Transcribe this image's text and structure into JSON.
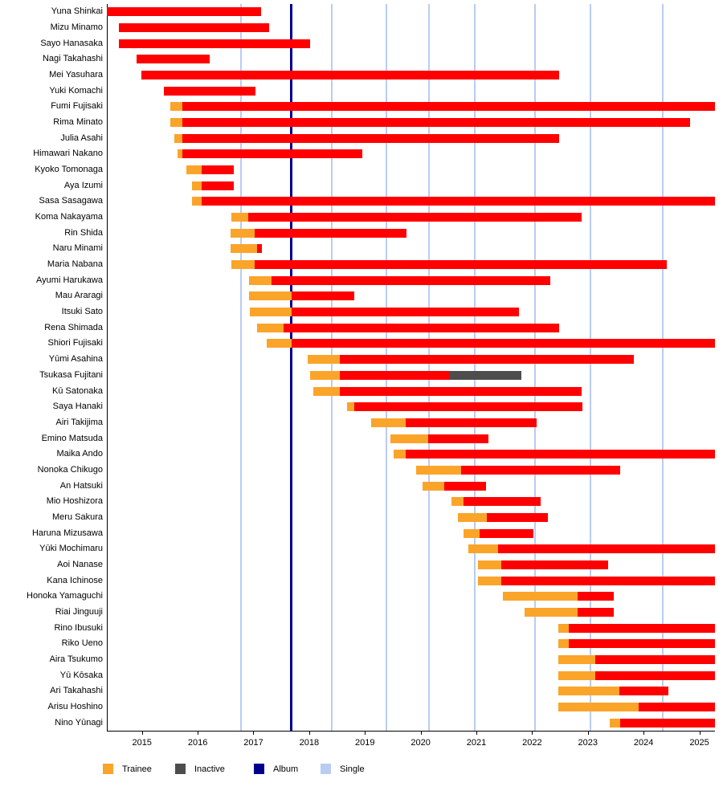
{
  "chart_data": {
    "type": "timeline-gantt",
    "title": "",
    "x_axis": {
      "min": 2014.37,
      "max": 2025.28,
      "ticks": [
        2015,
        2016,
        2017,
        2018,
        2019,
        2020,
        2021,
        2022,
        2023,
        2024,
        2025
      ]
    },
    "event_lines": {
      "album": [
        2017.68
      ],
      "singles": [
        2016.77,
        2018.41,
        2019.39,
        2020.15,
        2020.97,
        2022.05,
        2023.04,
        2024.35
      ]
    },
    "members": [
      {
        "name": "Yuna Shinkai",
        "segments": [
          {
            "status": "active",
            "start": 2014.37,
            "end": 2017.13
          }
        ]
      },
      {
        "name": "Mizu Minamo",
        "segments": [
          {
            "status": "active",
            "start": 2014.59,
            "end": 2017.28
          }
        ]
      },
      {
        "name": "Sayo Hanasaka",
        "segments": [
          {
            "status": "active",
            "start": 2014.59,
            "end": 2018.01
          }
        ]
      },
      {
        "name": "Nagi Takahashi",
        "segments": [
          {
            "status": "active",
            "start": 2014.91,
            "end": 2016.22
          }
        ]
      },
      {
        "name": "Mei Yasuhara",
        "segments": [
          {
            "status": "active",
            "start": 2014.99,
            "end": 2022.49
          }
        ]
      },
      {
        "name": "Yuki Komachi",
        "segments": [
          {
            "status": "active",
            "start": 2015.39,
            "end": 2017.04
          }
        ]
      },
      {
        "name": "Fumi Fujisaki",
        "segments": [
          {
            "status": "trainee",
            "start": 2015.51,
            "end": 2015.72
          },
          {
            "status": "active",
            "start": 2015.72,
            "end": 2025.28
          }
        ]
      },
      {
        "name": "Rima Minato",
        "segments": [
          {
            "status": "trainee",
            "start": 2015.51,
            "end": 2015.72
          },
          {
            "status": "active",
            "start": 2015.72,
            "end": 2024.83
          }
        ]
      },
      {
        "name": "Julia Asahi",
        "segments": [
          {
            "status": "trainee",
            "start": 2015.58,
            "end": 2015.72
          },
          {
            "status": "active",
            "start": 2015.72,
            "end": 2022.49
          }
        ]
      },
      {
        "name": "Himawari Nakano",
        "segments": [
          {
            "status": "trainee",
            "start": 2015.64,
            "end": 2015.72
          },
          {
            "status": "active",
            "start": 2015.72,
            "end": 2018.96
          }
        ]
      },
      {
        "name": "Kyoko Tomonaga",
        "segments": [
          {
            "status": "trainee",
            "start": 2015.8,
            "end": 2016.07
          },
          {
            "status": "active",
            "start": 2016.07,
            "end": 2016.65
          }
        ]
      },
      {
        "name": "Aya Izumi",
        "segments": [
          {
            "status": "trainee",
            "start": 2015.9,
            "end": 2016.07
          },
          {
            "status": "active",
            "start": 2016.07,
            "end": 2016.65
          }
        ]
      },
      {
        "name": "Sasa Sasagawa",
        "segments": [
          {
            "status": "trainee",
            "start": 2015.9,
            "end": 2016.07
          },
          {
            "status": "active",
            "start": 2016.07,
            "end": 2025.28
          }
        ]
      },
      {
        "name": "Koma Nakayama",
        "segments": [
          {
            "status": "trainee",
            "start": 2016.61,
            "end": 2016.9
          },
          {
            "status": "active",
            "start": 2016.9,
            "end": 2022.89
          }
        ]
      },
      {
        "name": "Rin Shida",
        "segments": [
          {
            "status": "trainee",
            "start": 2016.59,
            "end": 2017.02
          },
          {
            "status": "active",
            "start": 2017.02,
            "end": 2019.75
          }
        ]
      },
      {
        "name": "Naru Minami",
        "segments": [
          {
            "status": "trainee",
            "start": 2016.59,
            "end": 2017.06
          },
          {
            "status": "active",
            "start": 2017.06,
            "end": 2017.15
          }
        ]
      },
      {
        "name": "Maria Nabana",
        "segments": [
          {
            "status": "trainee",
            "start": 2016.61,
            "end": 2017.02
          },
          {
            "status": "active",
            "start": 2017.02,
            "end": 2024.42
          }
        ]
      },
      {
        "name": "Ayumi Harukawa",
        "segments": [
          {
            "status": "trainee",
            "start": 2016.92,
            "end": 2017.32
          },
          {
            "status": "active",
            "start": 2017.32,
            "end": 2022.32
          }
        ]
      },
      {
        "name": "Mau Araragi",
        "segments": [
          {
            "status": "trainee",
            "start": 2016.92,
            "end": 2017.68
          },
          {
            "status": "active",
            "start": 2017.68,
            "end": 2018.81
          }
        ]
      },
      {
        "name": "Itsuki Sato",
        "segments": [
          {
            "status": "trainee",
            "start": 2016.93,
            "end": 2017.68
          },
          {
            "status": "active",
            "start": 2017.68,
            "end": 2021.76
          }
        ]
      },
      {
        "name": "Rena Shimada",
        "segments": [
          {
            "status": "trainee",
            "start": 2017.06,
            "end": 2017.54
          },
          {
            "status": "active",
            "start": 2017.54,
            "end": 2022.49
          }
        ]
      },
      {
        "name": "Shiori Fujisaki",
        "segments": [
          {
            "status": "trainee",
            "start": 2017.24,
            "end": 2017.68
          },
          {
            "status": "active",
            "start": 2017.68,
            "end": 2025.28
          }
        ]
      },
      {
        "name": "Yūmi Asahina",
        "segments": [
          {
            "status": "trainee",
            "start": 2017.98,
            "end": 2018.55
          },
          {
            "status": "active",
            "start": 2018.55,
            "end": 2023.83
          }
        ]
      },
      {
        "name": "Tsukasa Fujitani",
        "segments": [
          {
            "status": "trainee",
            "start": 2018.01,
            "end": 2018.55
          },
          {
            "status": "active",
            "start": 2018.55,
            "end": 2020.52
          },
          {
            "status": "inactive",
            "start": 2020.52,
            "end": 2021.81
          }
        ]
      },
      {
        "name": "Kū Satonaka",
        "segments": [
          {
            "status": "trainee",
            "start": 2018.08,
            "end": 2018.55
          },
          {
            "status": "active",
            "start": 2018.55,
            "end": 2022.89
          }
        ]
      },
      {
        "name": "Saya Hanaki",
        "segments": [
          {
            "status": "trainee",
            "start": 2018.68,
            "end": 2018.81
          },
          {
            "status": "active",
            "start": 2018.81,
            "end": 2022.9
          }
        ]
      },
      {
        "name": "Airi Takijima",
        "segments": [
          {
            "status": "trainee",
            "start": 2019.11,
            "end": 2019.73
          },
          {
            "status": "active",
            "start": 2019.73,
            "end": 2022.08
          }
        ]
      },
      {
        "name": "Emino Matsuda",
        "segments": [
          {
            "status": "trainee",
            "start": 2019.46,
            "end": 2020.13
          },
          {
            "status": "active",
            "start": 2020.13,
            "end": 2021.21
          }
        ]
      },
      {
        "name": "Maika Ando",
        "segments": [
          {
            "status": "trainee",
            "start": 2019.51,
            "end": 2019.73
          },
          {
            "status": "active",
            "start": 2019.73,
            "end": 2025.28
          }
        ]
      },
      {
        "name": "Nonoka Chikugo",
        "segments": [
          {
            "status": "trainee",
            "start": 2019.92,
            "end": 2020.73
          },
          {
            "status": "active",
            "start": 2020.73,
            "end": 2023.58
          }
        ]
      },
      {
        "name": "An Hatsuki",
        "segments": [
          {
            "status": "trainee",
            "start": 2020.04,
            "end": 2020.42
          },
          {
            "status": "active",
            "start": 2020.42,
            "end": 2021.17
          }
        ]
      },
      {
        "name": "Mio Hoshizora",
        "segments": [
          {
            "status": "trainee",
            "start": 2020.55,
            "end": 2020.77
          },
          {
            "status": "active",
            "start": 2020.77,
            "end": 2022.15
          }
        ]
      },
      {
        "name": "Meru Sakura",
        "segments": [
          {
            "status": "trainee",
            "start": 2020.67,
            "end": 2021.18
          },
          {
            "status": "active",
            "start": 2021.18,
            "end": 2022.28
          }
        ]
      },
      {
        "name": "Haruna Mizusawa",
        "segments": [
          {
            "status": "trainee",
            "start": 2020.77,
            "end": 2021.06
          },
          {
            "status": "active",
            "start": 2021.06,
            "end": 2022.03
          }
        ]
      },
      {
        "name": "Yūki Mochimaru",
        "segments": [
          {
            "status": "trainee",
            "start": 2020.85,
            "end": 2021.39
          },
          {
            "status": "active",
            "start": 2021.39,
            "end": 2025.28
          }
        ]
      },
      {
        "name": "Aoi Nanase",
        "segments": [
          {
            "status": "trainee",
            "start": 2021.03,
            "end": 2021.45
          },
          {
            "status": "active",
            "start": 2021.45,
            "end": 2023.36
          }
        ]
      },
      {
        "name": "Kana Ichinose",
        "segments": [
          {
            "status": "trainee",
            "start": 2021.03,
            "end": 2021.45
          },
          {
            "status": "active",
            "start": 2021.45,
            "end": 2025.28
          }
        ]
      },
      {
        "name": "Honoka Yamaguchi",
        "segments": [
          {
            "status": "trainee",
            "start": 2021.47,
            "end": 2022.82
          },
          {
            "status": "active",
            "start": 2022.82,
            "end": 2023.47
          }
        ]
      },
      {
        "name": "Riai Jinguuji",
        "segments": [
          {
            "status": "trainee",
            "start": 2021.87,
            "end": 2022.82
          },
          {
            "status": "active",
            "start": 2022.82,
            "end": 2023.47
          }
        ]
      },
      {
        "name": "Rino Ibusuki",
        "segments": [
          {
            "status": "trainee",
            "start": 2022.47,
            "end": 2022.66
          },
          {
            "status": "active",
            "start": 2022.66,
            "end": 2025.28
          }
        ]
      },
      {
        "name": "Riko Ueno",
        "segments": [
          {
            "status": "trainee",
            "start": 2022.47,
            "end": 2022.66
          },
          {
            "status": "active",
            "start": 2022.66,
            "end": 2025.28
          }
        ]
      },
      {
        "name": "Aira Tsukumo",
        "segments": [
          {
            "status": "trainee",
            "start": 2022.47,
            "end": 2023.13
          },
          {
            "status": "active",
            "start": 2023.13,
            "end": 2025.28
          }
        ]
      },
      {
        "name": "Yū Kōsaka",
        "segments": [
          {
            "status": "trainee",
            "start": 2022.47,
            "end": 2023.13
          },
          {
            "status": "active",
            "start": 2023.13,
            "end": 2025.28
          }
        ]
      },
      {
        "name": "Ari Takahashi",
        "segments": [
          {
            "status": "trainee",
            "start": 2022.47,
            "end": 2023.56
          },
          {
            "status": "active",
            "start": 2023.56,
            "end": 2024.45
          }
        ]
      },
      {
        "name": "Arisu Hoshino",
        "segments": [
          {
            "status": "trainee",
            "start": 2022.47,
            "end": 2023.91
          },
          {
            "status": "active",
            "start": 2023.91,
            "end": 2025.28
          }
        ]
      },
      {
        "name": "Nino Yūnagi",
        "segments": [
          {
            "status": "trainee",
            "start": 2023.39,
            "end": 2023.58
          },
          {
            "status": "active",
            "start": 2023.58,
            "end": 2025.28
          }
        ]
      }
    ]
  },
  "legend": {
    "items": [
      {
        "label": "Trainee",
        "color": "#FBA42A"
      },
      {
        "label": "Inactive",
        "color": "#4D4D4D"
      },
      {
        "label": "Album",
        "color": "#00008B"
      },
      {
        "label": "Single",
        "color": "#B9CCF2"
      }
    ]
  },
  "colors": {
    "trainee": "#FBA42A",
    "active": "#FF0000",
    "inactive": "#4D4D4D",
    "album": "#00008B",
    "single": "#B9CCF2",
    "axis": "#000000",
    "background": "#FFFFFF"
  }
}
